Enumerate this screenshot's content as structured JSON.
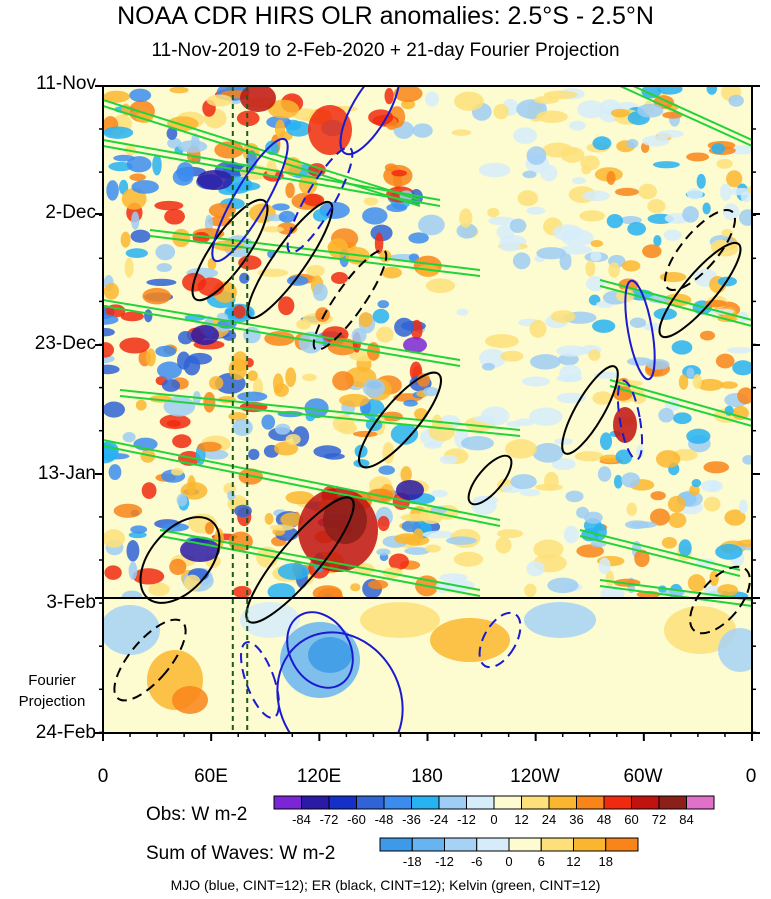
{
  "chart_data": {
    "type": "heatmap",
    "title": "NOAA CDR HIRS OLR anomalies: 2.5°S - 2.5°N",
    "subtitle": "11-Nov-2019 to 2-Feb-2020 + 21-day Fourier Projection",
    "x_axis": {
      "ticks": [
        "0",
        "60E",
        "120E",
        "180",
        "120W",
        "60W",
        "0"
      ],
      "values_deg_east": [
        0,
        60,
        120,
        180,
        240,
        300,
        360
      ],
      "range": [
        0,
        360
      ]
    },
    "y_axis": {
      "ticks": [
        "11-Nov",
        "2-Dec",
        "23-Dec",
        "13-Jan",
        "3-Feb",
        "24-Feb"
      ],
      "range": [
        "11-Nov-2019",
        "24-Feb-2020"
      ],
      "reversed": true
    },
    "fourier_label": "Fourier Projection",
    "observation_end": "3-Feb",
    "reference_lines_deg_east": [
      72,
      80
    ],
    "obs_colorbar": {
      "label": "Obs: W m-2",
      "levels": [
        -84,
        -72,
        -60,
        -48,
        -36,
        -24,
        -12,
        0,
        12,
        24,
        36,
        48,
        60,
        72,
        84
      ],
      "colors": [
        "#7b26d6",
        "#2a1aa6",
        "#1530c8",
        "#2f63d6",
        "#3c8cf0",
        "#27b2f2",
        "#9ecdf5",
        "#d5ecfb",
        "#fdfbd0",
        "#fde07a",
        "#fbb62f",
        "#f9851a",
        "#f02a10",
        "#c0120f",
        "#8b1f1a",
        "#e070c8"
      ]
    },
    "waves_colorbar": {
      "label": "Sum of Waves: W m-2",
      "levels": [
        -18,
        -12,
        -6,
        0,
        6,
        12,
        18
      ],
      "colors": [
        "#3c9ae8",
        "#68b4f0",
        "#a6d2f6",
        "#d6ecfa",
        "#fdfbd0",
        "#fde07a",
        "#fbb62f",
        "#f9851a"
      ]
    },
    "contours": [
      {
        "name": "MJO",
        "color": "#1a1ad0",
        "cint": 12
      },
      {
        "name": "ER",
        "color": "#000000",
        "cint": 12
      },
      {
        "name": "Kelvin",
        "color": "#22d43a",
        "cint": 12
      }
    ]
  },
  "footer": "MJO (blue, CINT=12); ER (black, CINT=12); Kelvin (green, CINT=12)"
}
